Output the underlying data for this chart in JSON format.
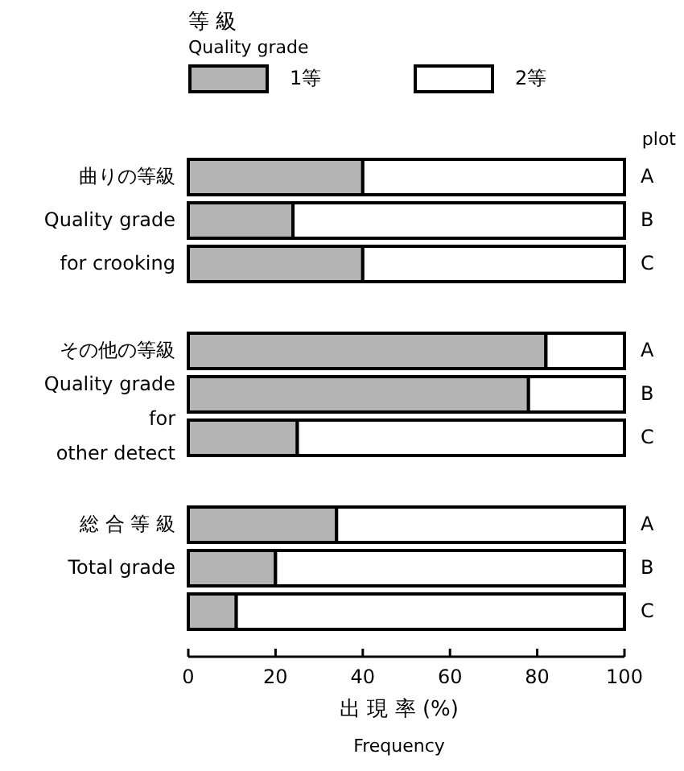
{
  "chart_data": {
    "type": "bar",
    "orientation": "horizontal",
    "stacked": true,
    "legend_title": "等 級\nQuality grade",
    "xlabel": "出 現 率 (%)\nFrequency",
    "categories": [
      "A",
      "B",
      "C",
      null,
      "A",
      "B",
      "C",
      null,
      "A",
      "B",
      "C"
    ],
    "series": [
      {
        "name": "1等",
        "color": "#b4b4b4",
        "values": [
          40,
          24,
          40,
          null,
          82,
          78,
          25,
          null,
          34,
          20,
          11
        ]
      },
      {
        "name": "2等",
        "color": "#ffffff",
        "values": [
          60,
          76,
          60,
          null,
          18,
          22,
          75,
          null,
          66,
          80,
          89
        ]
      }
    ],
    "xlim": [
      0,
      100
    ],
    "xticks": [
      0,
      20,
      40,
      60,
      80,
      100
    ],
    "legend": "top",
    "annotations": [
      "曲りの等級\nQuality grade\nfor crooking",
      "その他の等級\nQuality grade\nfor\nother detect",
      "総 合 等 級\nTotal grade",
      "plot"
    ]
  }
}
